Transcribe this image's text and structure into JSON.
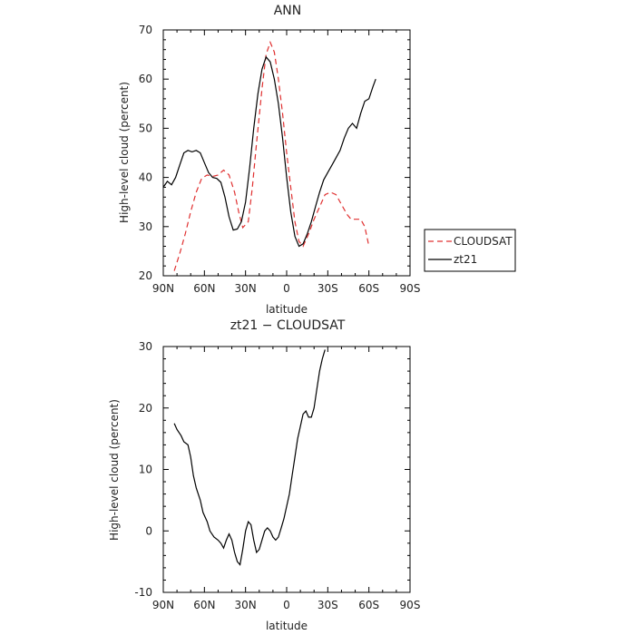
{
  "chart_data": [
    {
      "type": "line",
      "title": "ANN",
      "xlabel": "latitude",
      "ylabel": "High-level cloud (percent)",
      "xlim": [
        -90,
        90
      ],
      "ylim": [
        20,
        70
      ],
      "x_ticks": [
        -90,
        -60,
        -30,
        0,
        30,
        60,
        90
      ],
      "x_tick_labels": [
        "90N",
        "60N",
        "30N",
        "0",
        "30S",
        "60S",
        "90S"
      ],
      "y_ticks": [
        20,
        30,
        40,
        50,
        60,
        70
      ],
      "legend": {
        "position": "right",
        "entries": [
          "CLOUDSAT",
          "zt21"
        ]
      },
      "grid": false,
      "series": [
        {
          "name": "CLOUDSAT",
          "color": "#e03030",
          "dash": "dashed",
          "points": [
            [
              -82,
              21
            ],
            [
              -78,
              24.5
            ],
            [
              -74,
              28.5
            ],
            [
              -70,
              33
            ],
            [
              -66,
              37
            ],
            [
              -62,
              39.8
            ],
            [
              -58,
              40.5
            ],
            [
              -54,
              40.2
            ],
            [
              -50,
              40.5
            ],
            [
              -46,
              41.5
            ],
            [
              -42,
              40.5
            ],
            [
              -38,
              37
            ],
            [
              -35,
              33
            ],
            [
              -32,
              29.8
            ],
            [
              -28,
              31
            ],
            [
              -25,
              38
            ],
            [
              -22,
              47
            ],
            [
              -18,
              58
            ],
            [
              -15,
              65
            ],
            [
              -12,
              67.5
            ],
            [
              -9,
              65.5
            ],
            [
              -6,
              60
            ],
            [
              -3,
              53
            ],
            [
              0,
              45
            ],
            [
              3,
              38
            ],
            [
              6,
              31
            ],
            [
              9,
              27
            ],
            [
              12,
              26
            ],
            [
              16,
              28.5
            ],
            [
              20,
              31.5
            ],
            [
              24,
              34
            ],
            [
              28,
              36.5
            ],
            [
              32,
              37
            ],
            [
              36,
              36.5
            ],
            [
              40,
              34.5
            ],
            [
              44,
              32.5
            ],
            [
              47,
              31.5
            ],
            [
              50,
              31.5
            ],
            [
              54,
              31.5
            ],
            [
              57,
              30
            ],
            [
              60,
              26
            ]
          ]
        },
        {
          "name": "zt21",
          "color": "#000000",
          "dash": "solid",
          "points": [
            [
              -90,
              38
            ],
            [
              -87,
              39.2
            ],
            [
              -84,
              38.5
            ],
            [
              -81,
              40
            ],
            [
              -78,
              42.5
            ],
            [
              -75,
              45
            ],
            [
              -72,
              45.5
            ],
            [
              -69,
              45.2
            ],
            [
              -66,
              45.5
            ],
            [
              -63,
              45
            ],
            [
              -60,
              43
            ],
            [
              -57,
              41
            ],
            [
              -54,
              40
            ],
            [
              -51,
              39.8
            ],
            [
              -48,
              39
            ],
            [
              -45,
              36
            ],
            [
              -42,
              32
            ],
            [
              -39,
              29.3
            ],
            [
              -36,
              29.5
            ],
            [
              -33,
              31
            ],
            [
              -30,
              35
            ],
            [
              -27,
              42
            ],
            [
              -24,
              50
            ],
            [
              -21,
              57
            ],
            [
              -18,
              62
            ],
            [
              -15,
              64.5
            ],
            [
              -12,
              63.5
            ],
            [
              -9,
              60
            ],
            [
              -6,
              55
            ],
            [
              -3,
              48
            ],
            [
              0,
              40
            ],
            [
              3,
              33
            ],
            [
              6,
              28
            ],
            [
              9,
              26
            ],
            [
              12,
              26.5
            ],
            [
              15,
              28.5
            ],
            [
              18,
              31
            ],
            [
              21,
              34
            ],
            [
              24,
              37
            ],
            [
              27,
              39.5
            ],
            [
              30,
              41
            ],
            [
              33,
              42.5
            ],
            [
              36,
              44
            ],
            [
              39,
              45.5
            ],
            [
              42,
              48
            ],
            [
              45,
              50
            ],
            [
              48,
              51
            ],
            [
              51,
              50
            ],
            [
              54,
              53
            ],
            [
              57,
              55.5
            ],
            [
              60,
              56
            ],
            [
              63,
              58.5
            ],
            [
              65,
              60
            ]
          ]
        }
      ]
    },
    {
      "type": "line",
      "title": "zt21 − CLOUDSAT",
      "xlabel": "latitude",
      "ylabel": "High-level cloud (percent)",
      "xlim": [
        -90,
        90
      ],
      "ylim": [
        -10,
        30
      ],
      "x_ticks": [
        -90,
        -60,
        -30,
        0,
        30,
        60,
        90
      ],
      "x_tick_labels": [
        "90N",
        "60N",
        "30N",
        "0",
        "30S",
        "60S",
        "90S"
      ],
      "y_ticks": [
        -10,
        0,
        10,
        20,
        30
      ],
      "grid": false,
      "series": [
        {
          "color": "#000000",
          "dash": "solid",
          "points": [
            [
              -82,
              17.5
            ],
            [
              -80,
              16.5
            ],
            [
              -77,
              15.5
            ],
            [
              -75,
              14.5
            ],
            [
              -72,
              14
            ],
            [
              -70,
              12
            ],
            [
              -68,
              9
            ],
            [
              -66,
              7
            ],
            [
              -63,
              5
            ],
            [
              -61,
              3
            ],
            [
              -58,
              1.5
            ],
            [
              -56,
              0
            ],
            [
              -53,
              -1
            ],
            [
              -50,
              -1.5
            ],
            [
              -48,
              -2
            ],
            [
              -46,
              -2.8
            ],
            [
              -44,
              -1.5
            ],
            [
              -42,
              -0.5
            ],
            [
              -40,
              -1.5
            ],
            [
              -38,
              -3.5
            ],
            [
              -36,
              -5
            ],
            [
              -34,
              -5.5
            ],
            [
              -32,
              -3
            ],
            [
              -30,
              0
            ],
            [
              -28,
              1.5
            ],
            [
              -26,
              1
            ],
            [
              -24,
              -1.5
            ],
            [
              -22,
              -3.5
            ],
            [
              -20,
              -3
            ],
            [
              -18,
              -1.5
            ],
            [
              -16,
              0
            ],
            [
              -14,
              0.5
            ],
            [
              -12,
              0
            ],
            [
              -10,
              -1
            ],
            [
              -8,
              -1.5
            ],
            [
              -6,
              -1
            ],
            [
              -4,
              0.5
            ],
            [
              -2,
              2
            ],
            [
              0,
              4
            ],
            [
              2,
              6
            ],
            [
              4,
              9
            ],
            [
              6,
              12
            ],
            [
              8,
              15
            ],
            [
              10,
              17
            ],
            [
              12,
              19
            ],
            [
              14,
              19.5
            ],
            [
              16,
              18.5
            ],
            [
              18,
              18.5
            ],
            [
              20,
              20
            ],
            [
              22,
              23
            ],
            [
              24,
              26
            ],
            [
              26,
              28
            ],
            [
              28,
              29.5
            ]
          ]
        }
      ]
    }
  ]
}
